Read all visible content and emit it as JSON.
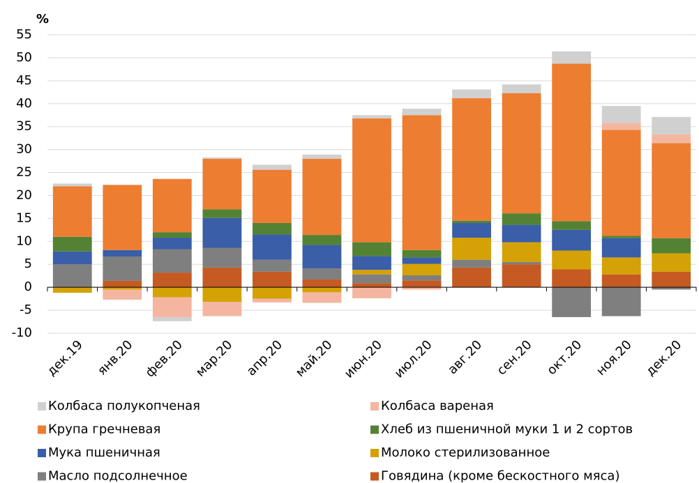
{
  "chart_data": {
    "type": "bar",
    "stacked": true,
    "y_axis_label": "%",
    "categories": [
      "дек.19",
      "янв.20",
      "фев.20",
      "мар.20",
      "апр.20",
      "май.20",
      "июн.20",
      "июл.20",
      "авг.20",
      "сен.20",
      "окт.20",
      "ноя.20",
      "дек.20"
    ],
    "ylim": [
      -10,
      55
    ],
    "yticks": [
      -10,
      -5,
      0,
      5,
      10,
      15,
      20,
      25,
      30,
      35,
      40,
      45,
      50,
      55
    ],
    "grid": true,
    "series": [
      {
        "name": "Колбаса полукопченая",
        "color": "#d0d0d0",
        "values": [
          0.6,
          0,
          -0.9,
          0.3,
          1.1,
          0.9,
          0.7,
          1.4,
          1.9,
          1.9,
          2.7,
          3.7,
          3.8
        ]
      },
      {
        "name": "Колбаса вареная",
        "color": "#f4b6a0",
        "values": [
          0,
          -2.2,
          -4.3,
          -3.1,
          -0.8,
          -2.3,
          -2.4,
          -0.5,
          0,
          0,
          0,
          1.5,
          1.9
        ]
      },
      {
        "name": "Крупа гречневая",
        "color": "#ed7d31",
        "values": [
          11,
          14.2,
          11.6,
          11,
          11.6,
          16.6,
          27,
          29.4,
          26.7,
          26.2,
          34.3,
          23.1,
          20.7
        ]
      },
      {
        "name": "Хлеб из пшеничной муки 1 и 2 сортов",
        "color": "#548235",
        "values": [
          3.2,
          0,
          1.2,
          1.9,
          2.5,
          2.2,
          3,
          1.6,
          0.5,
          2.5,
          1.9,
          0.5,
          3.3
        ]
      },
      {
        "name": "Мука пшеничная",
        "color": "#3a5ea8",
        "values": [
          2.8,
          1.4,
          2.5,
          6.5,
          5.5,
          5.1,
          3,
          1.4,
          3.2,
          3.8,
          4.5,
          4.2,
          0
        ]
      },
      {
        "name": "Молоко стерилизованное",
        "color": "#d4a106",
        "values": [
          -1.2,
          -0.5,
          -2.2,
          -3.2,
          -2.5,
          -1.1,
          1,
          2.5,
          4.8,
          4.3,
          4.1,
          3.7,
          4
        ]
      },
      {
        "name": "Масло подсолнечное",
        "color": "#7f7f7f",
        "values": [
          5,
          5.3,
          5.1,
          4.3,
          2.6,
          2.4,
          1.9,
          1.1,
          1.7,
          0.5,
          -6.5,
          -6.3,
          -0.5
        ]
      },
      {
        "name": "Говядина (кроме бескостного мяса)",
        "color": "#c55a22",
        "values": [
          0,
          1.4,
          3.2,
          4.3,
          3.4,
          1.7,
          0.9,
          1.5,
          4.3,
          5,
          3.9,
          2.8,
          3.4
        ]
      }
    ]
  }
}
